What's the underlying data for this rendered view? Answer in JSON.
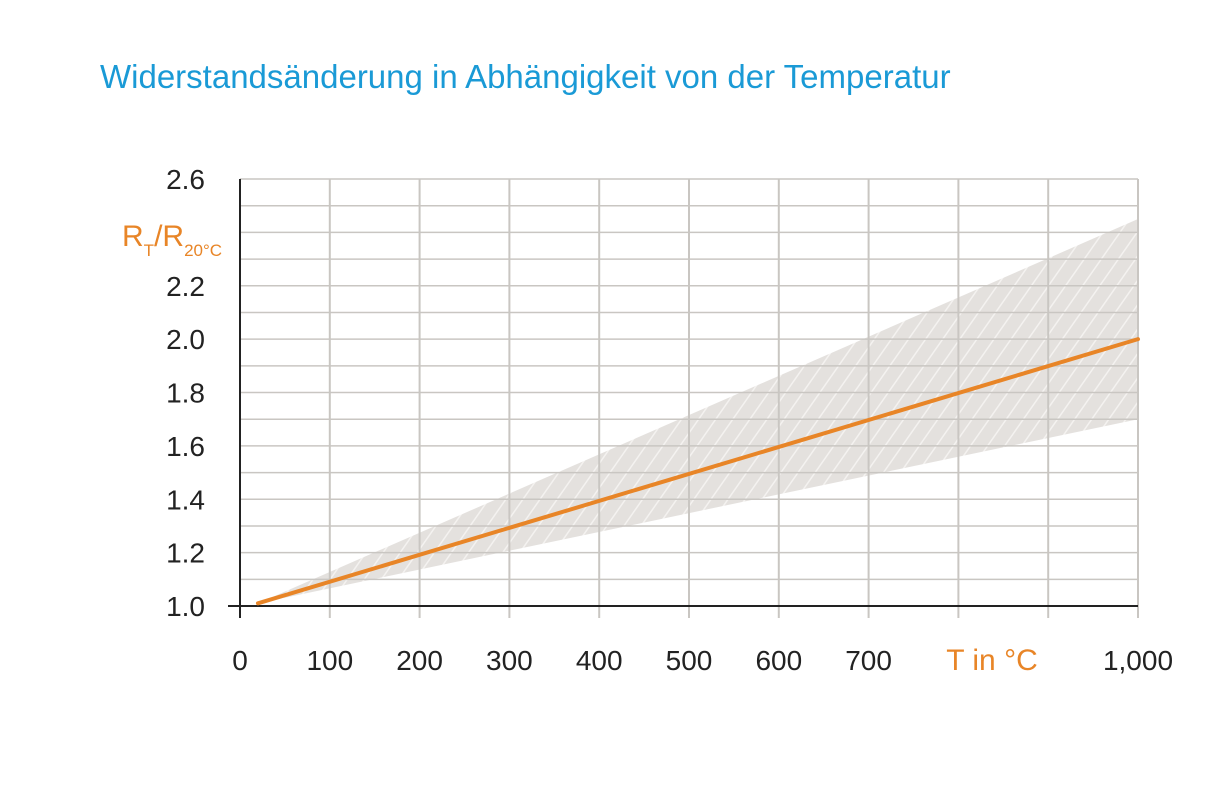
{
  "colors": {
    "title": "#1a9ad6",
    "line": "#e88527",
    "band": "#e4e1de",
    "grid": "#c9c6c2",
    "axis": "#222222",
    "label_accent": "#e88527"
  },
  "chart_data": {
    "type": "line",
    "title": "Widerstandsänderung in Abhängigkeit von der Temperatur",
    "xlabel": "T in °C",
    "ylabel": {
      "main": "R",
      "sub1": "T",
      "sep": "/R",
      "sub2": "20°C"
    },
    "xlim": [
      0,
      1000
    ],
    "ylim": [
      1.0,
      2.6
    ],
    "x_ticks": [
      0,
      100,
      200,
      300,
      400,
      500,
      600,
      700,
      1000
    ],
    "x_tick_labels": [
      "0",
      "100",
      "200",
      "300",
      "400",
      "500",
      "600",
      "700",
      "1,000"
    ],
    "x_gridlines": [
      100,
      200,
      300,
      400,
      500,
      600,
      700,
      800,
      900,
      1000
    ],
    "y_ticks": [
      1.0,
      1.2,
      1.4,
      1.6,
      1.8,
      2.0,
      2.2,
      2.6
    ],
    "y_tick_labels": [
      "1.0",
      "1.2",
      "1.4",
      "1.6",
      "1.8",
      "2.0",
      "2.2",
      "2.6"
    ],
    "y_gridlines": [
      1.1,
      1.2,
      1.3,
      1.4,
      1.5,
      1.6,
      1.7,
      1.8,
      1.9,
      2.0,
      2.1,
      2.2,
      2.3,
      2.4,
      2.5,
      2.6
    ],
    "grid": true,
    "series": [
      {
        "x": [
          20,
          1000
        ],
        "y": [
          1.01,
          2.0
        ]
      }
    ],
    "band": {
      "x": [
        20,
        1000
      ],
      "upper": [
        1.01,
        2.45
      ],
      "lower": [
        1.01,
        1.7
      ]
    }
  }
}
